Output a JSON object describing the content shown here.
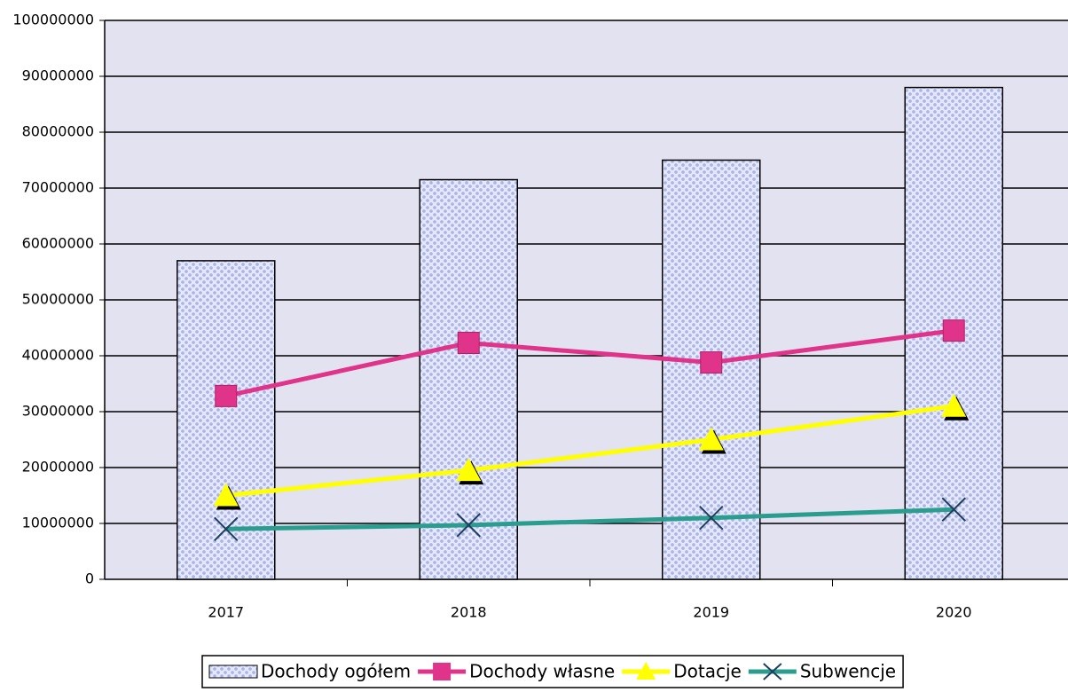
{
  "chart_data": {
    "type": "bar",
    "categories": [
      "2017",
      "2018",
      "2019",
      "2020"
    ],
    "series": [
      {
        "name": "Dochody ogółem",
        "type": "bar",
        "color": "#b8c0ec",
        "values": [
          57000000,
          71500000,
          75000000,
          88000000
        ]
      },
      {
        "name": "Dochody własne",
        "type": "line",
        "marker": "square",
        "color": "#e0338a",
        "values": [
          32800000,
          42300000,
          38800000,
          44500000
        ]
      },
      {
        "name": "Dotacje",
        "type": "line",
        "marker": "triangle",
        "color": "#ffff00",
        "values": [
          15000000,
          19500000,
          25000000,
          31000000
        ]
      },
      {
        "name": "Subwencje",
        "type": "line",
        "marker": "x",
        "color": "#2a9d8f",
        "values": [
          9000000,
          9700000,
          11000000,
          12500000
        ]
      }
    ],
    "ylim": [
      0,
      100000000
    ],
    "yticks": [
      0,
      10000000,
      20000000,
      30000000,
      40000000,
      50000000,
      60000000,
      70000000,
      80000000,
      90000000,
      100000000
    ],
    "grid": true,
    "legend": "bottom"
  }
}
